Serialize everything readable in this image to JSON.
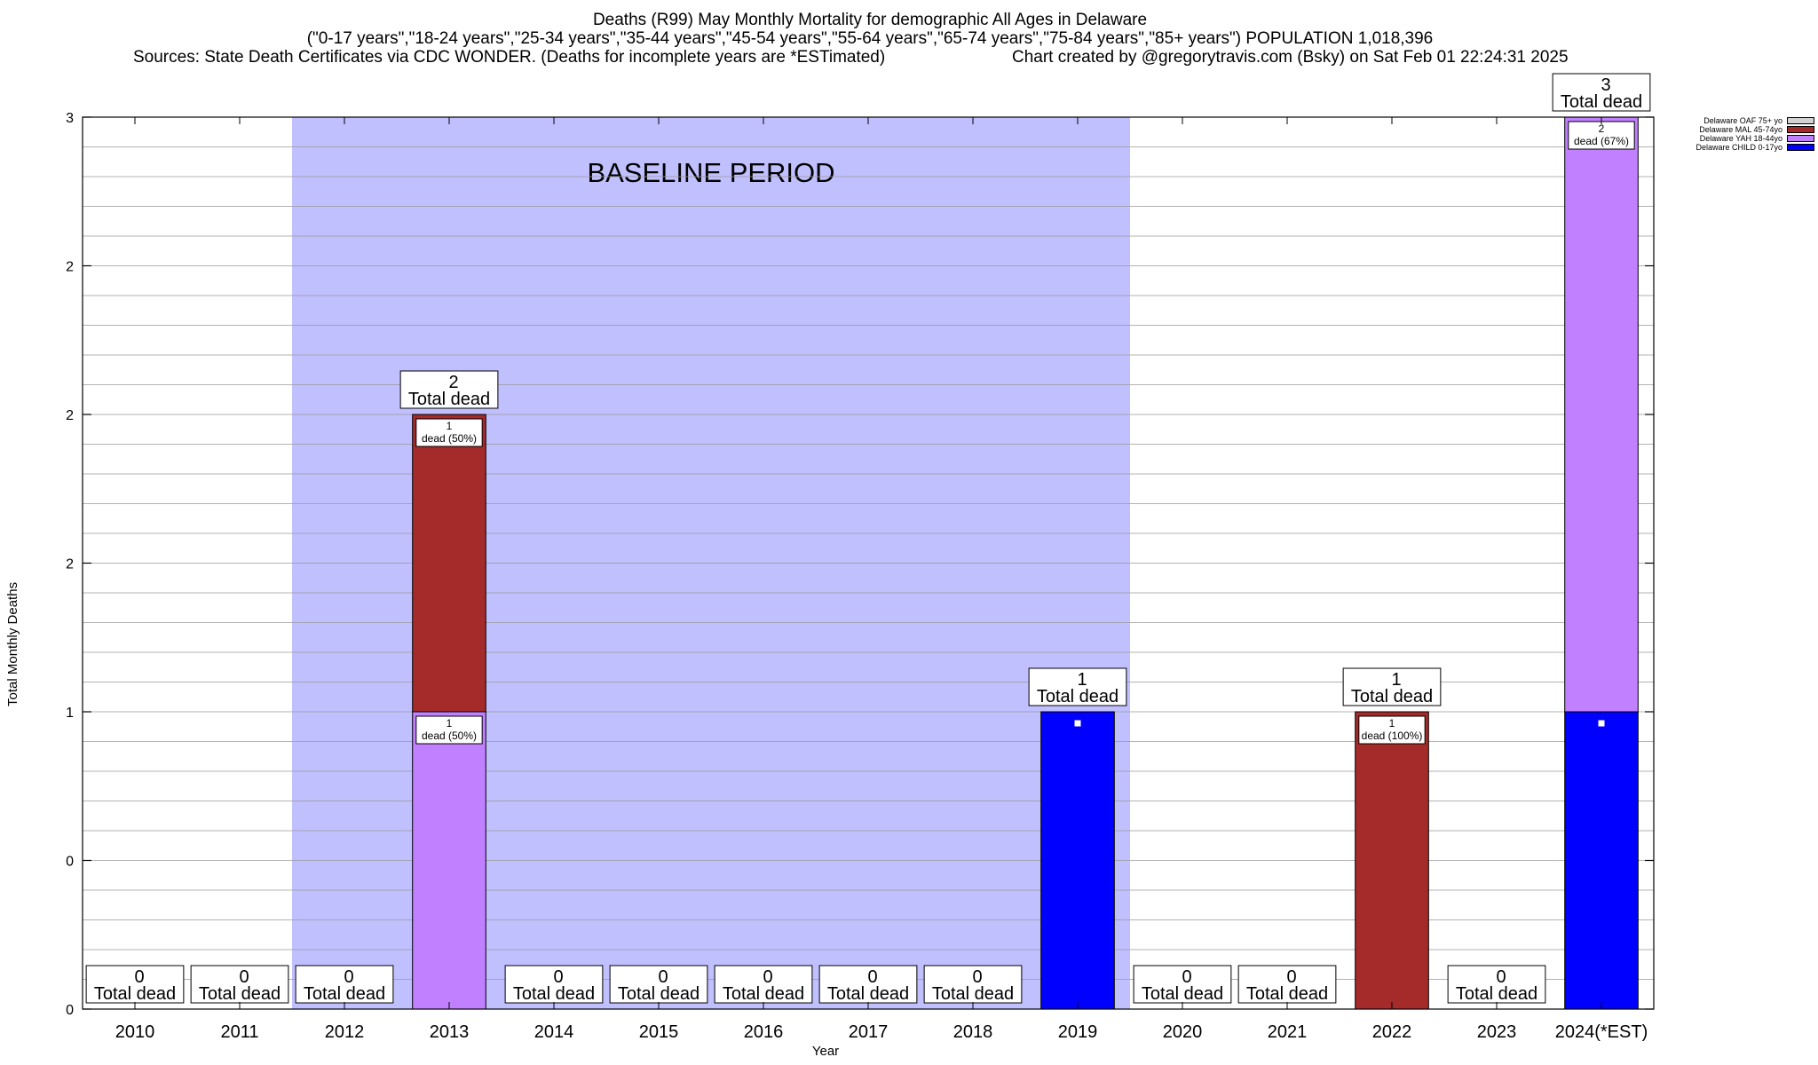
{
  "title": {
    "line1": "Deaths (R99) May Monthly Mortality for demographic All Ages in Delaware",
    "line2": "(\"0-17 years\",\"18-24 years\",\"25-34 years\",\"35-44 years\",\"45-54 years\",\"55-64 years\",\"65-74 years\",\"75-84 years\",\"85+ years\") POPULATION 1,018,396",
    "sources": "Sources: State Death Certificates via CDC WONDER. (Deaths for incomplete years are *ESTimated)",
    "credit": "Chart created by @gregorytravis.com (Bsky) on Sat Feb 01 22:24:31 2025"
  },
  "legend": [
    {
      "label": "Delaware OAF 75+ yo",
      "color": "#d3d3d3"
    },
    {
      "label": "Delaware MAL 45-74yo",
      "color": "#a52a2a"
    },
    {
      "label": "Delaware YAH 18-44yo",
      "color": "#c080ff"
    },
    {
      "label": "Delaware CHILD 0-17yo",
      "color": "#0000ff"
    }
  ],
  "chart_data": {
    "type": "bar",
    "stacked": true,
    "xlabel": "Year",
    "ylabel": "Total Monthly Deaths",
    "ylim": [
      0,
      3
    ],
    "y_tick_values": [
      0,
      0.5,
      1,
      1.5,
      2,
      2.5,
      3
    ],
    "y_tick_labels": [
      "0",
      "0",
      "1",
      "2",
      "2",
      "2",
      "3"
    ],
    "grid": true,
    "legend_position": "top-right",
    "categories": [
      "2010",
      "2011",
      "2012",
      "2013",
      "2014",
      "2015",
      "2016",
      "2017",
      "2018",
      "2019",
      "2020",
      "2021",
      "2022",
      "2023",
      "2024(*EST)"
    ],
    "series": [
      {
        "name": "Delaware CHILD 0-17yo",
        "color": "#0000ff",
        "values": [
          0,
          0,
          0,
          0,
          0,
          0,
          0,
          0,
          0,
          1,
          0,
          0,
          0,
          0,
          1
        ]
      },
      {
        "name": "Delaware YAH 18-44yo",
        "color": "#c080ff",
        "values": [
          0,
          0,
          0,
          1,
          0,
          0,
          0,
          0,
          0,
          0,
          0,
          0,
          0,
          0,
          2
        ]
      },
      {
        "name": "Delaware MAL 45-74yo",
        "color": "#a52a2a",
        "values": [
          0,
          0,
          0,
          1,
          0,
          0,
          0,
          0,
          0,
          0,
          0,
          0,
          1,
          0,
          0
        ]
      },
      {
        "name": "Delaware OAF 75+ yo",
        "color": "#d3d3d3",
        "values": [
          0,
          0,
          0,
          0,
          0,
          0,
          0,
          0,
          0,
          0,
          0,
          0,
          0,
          0,
          0
        ]
      }
    ],
    "totals": [
      0,
      0,
      0,
      2,
      0,
      0,
      0,
      0,
      0,
      1,
      0,
      0,
      1,
      0,
      3
    ],
    "total_caption": "Total dead",
    "segment_labels": [
      {
        "category": "2013",
        "value": 1,
        "text": "dead (50%)",
        "y": 1
      },
      {
        "category": "2013",
        "value": 1,
        "text": "dead (50%)",
        "y": 2
      },
      {
        "category": "2022",
        "value": 1,
        "text": "dead (100%)",
        "y": 1
      },
      {
        "category": "2024(*EST)",
        "value": 2,
        "text": "dead (67%)",
        "y": 3
      }
    ],
    "baseline": {
      "label": "BASELINE PERIOD",
      "start": "2012",
      "end": "2019",
      "color": "#c0c0ff"
    }
  }
}
